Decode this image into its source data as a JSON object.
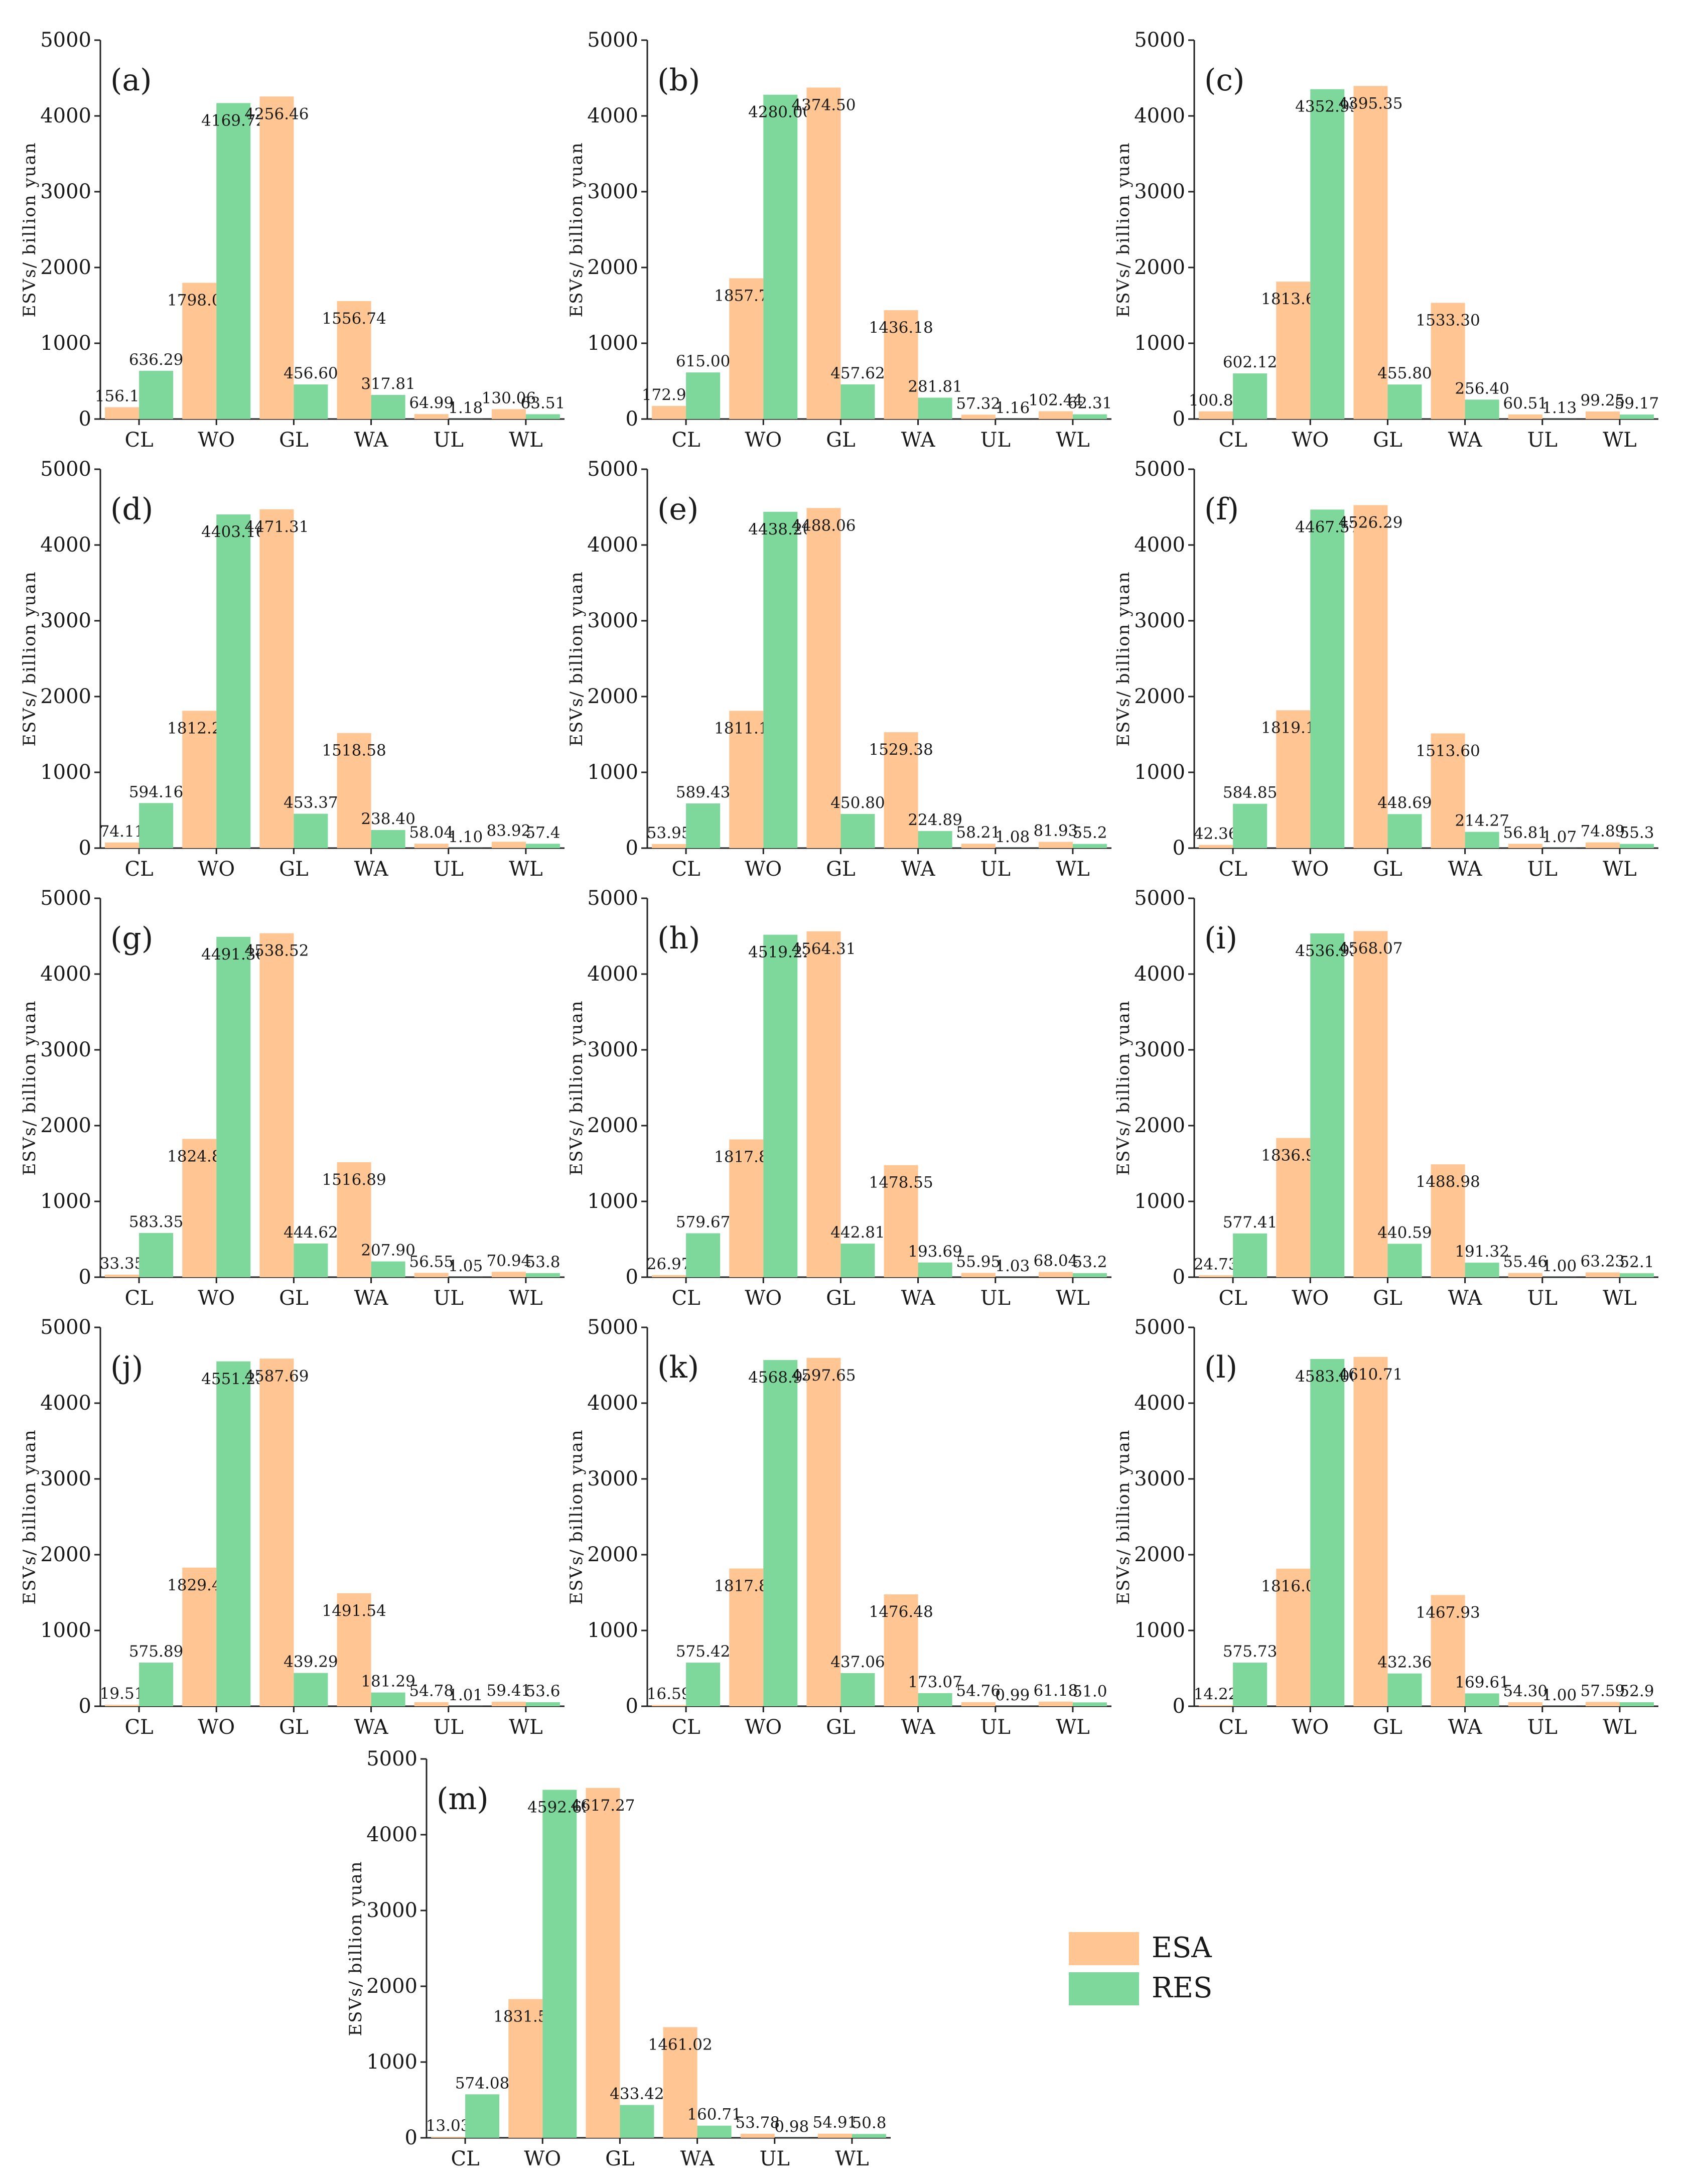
{
  "legend": [
    {
      "name": "ESA",
      "color": "#FFC592"
    },
    {
      "name": "RES",
      "color": "#7ED89C"
    }
  ],
  "chart_data": [
    {
      "type": "bar",
      "panel": "(a)",
      "categories": [
        "CL",
        "WO",
        "GL",
        "WA",
        "UL",
        "WL"
      ],
      "ylabel": "ESVs/ billion yuan",
      "ylim": [
        0,
        5000
      ],
      "yticks": [
        "0",
        "1000",
        "2000",
        "3000",
        "4000",
        "5000"
      ],
      "series": [
        {
          "name": "ESA",
          "values": [
            156.16,
            1798.07,
            4256.46,
            1556.74,
            64.99,
            130.06
          ],
          "labels": [
            "156.16",
            "1798.07",
            "4256.46",
            "1556.74",
            "64.99",
            "130.06"
          ]
        },
        {
          "name": "RES",
          "values": [
            636.29,
            4169.72,
            456.6,
            317.81,
            1.18,
            63.51
          ],
          "labels": [
            "636.29",
            "4169.72",
            "456.60",
            "317.81",
            "1.18",
            "63.51"
          ]
        }
      ]
    },
    {
      "type": "bar",
      "panel": "(b)",
      "categories": [
        "CL",
        "WO",
        "GL",
        "WA",
        "UL",
        "WL"
      ],
      "ylabel": "ESVs/ billion yuan",
      "ylim": [
        0,
        5000
      ],
      "yticks": [
        "0",
        "1000",
        "2000",
        "3000",
        "4000",
        "5000"
      ],
      "series": [
        {
          "name": "ESA",
          "values": [
            172.97,
            1857.77,
            4374.5,
            1436.18,
            57.32,
            102.44
          ],
          "labels": [
            "172.97",
            "1857.77",
            "4374.50",
            "1436.18",
            "57.32",
            "102.44"
          ]
        },
        {
          "name": "RES",
          "values": [
            615.0,
            4280.0,
            457.62,
            281.81,
            1.16,
            62.31
          ],
          "labels": [
            "615.00",
            "4280.00",
            "457.62",
            "281.81",
            "1.16",
            "62.31"
          ]
        }
      ]
    },
    {
      "type": "bar",
      "panel": "(c)",
      "categories": [
        "CL",
        "WO",
        "GL",
        "WA",
        "UL",
        "WL"
      ],
      "ylabel": "ESVs/ billion yuan",
      "ylim": [
        0,
        5000
      ],
      "yticks": [
        "0",
        "1000",
        "2000",
        "3000",
        "4000",
        "5000"
      ],
      "series": [
        {
          "name": "ESA",
          "values": [
            100.87,
            1813.62,
            4395.35,
            1533.3,
            60.51,
            99.25
          ],
          "labels": [
            "100.87",
            "1813.62",
            "4395.35",
            "1533.30",
            "60.51",
            "99.25"
          ]
        },
        {
          "name": "RES",
          "values": [
            602.12,
            4352.99,
            455.8,
            256.4,
            1.13,
            59.17
          ],
          "labels": [
            "602.12",
            "4352.99",
            "455.80",
            "256.40",
            "1.13",
            "59.17"
          ]
        }
      ]
    },
    {
      "type": "bar",
      "panel": "(d)",
      "categories": [
        "CL",
        "WO",
        "GL",
        "WA",
        "UL",
        "WL"
      ],
      "ylabel": "ESVs/ billion yuan",
      "ylim": [
        0,
        5000
      ],
      "yticks": [
        "0",
        "1000",
        "2000",
        "3000",
        "4000",
        "5000"
      ],
      "series": [
        {
          "name": "ESA",
          "values": [
            74.11,
            1812.26,
            4471.31,
            1518.58,
            58.04,
            83.92
          ],
          "labels": [
            "74.11",
            "1812.26",
            "4471.31",
            "1518.58",
            "58.04",
            "83.92"
          ]
        },
        {
          "name": "RES",
          "values": [
            594.16,
            4403.16,
            453.37,
            238.4,
            1.1,
            57.4
          ],
          "labels": [
            "594.16",
            "4403.16",
            "453.37",
            "238.40",
            "1.10",
            "57.4"
          ]
        }
      ]
    },
    {
      "type": "bar",
      "panel": "(e)",
      "categories": [
        "CL",
        "WO",
        "GL",
        "WA",
        "UL",
        "WL"
      ],
      "ylabel": "ESVs/ billion yuan",
      "ylim": [
        0,
        5000
      ],
      "yticks": [
        "0",
        "1000",
        "2000",
        "3000",
        "4000",
        "5000"
      ],
      "series": [
        {
          "name": "ESA",
          "values": [
            53.95,
            1811.19,
            4488.06,
            1529.38,
            58.21,
            81.93
          ],
          "labels": [
            "53.95",
            "1811.19",
            "4488.06",
            "1529.38",
            "58.21",
            "81.93"
          ]
        },
        {
          "name": "RES",
          "values": [
            589.43,
            4438.2,
            450.8,
            224.89,
            1.08,
            55.2
          ],
          "labels": [
            "589.43",
            "4438.20",
            "450.80",
            "224.89",
            "1.08",
            "55.2"
          ]
        }
      ]
    },
    {
      "type": "bar",
      "panel": "(f)",
      "categories": [
        "CL",
        "WO",
        "GL",
        "WA",
        "UL",
        "WL"
      ],
      "ylabel": "ESVs/ billion yuan",
      "ylim": [
        0,
        5000
      ],
      "yticks": [
        "0",
        "1000",
        "2000",
        "3000",
        "4000",
        "5000"
      ],
      "series": [
        {
          "name": "ESA",
          "values": [
            42.36,
            1819.16,
            4526.29,
            1513.6,
            56.81,
            74.89
          ],
          "labels": [
            "42.36",
            "1819.16",
            "4526.29",
            "1513.60",
            "56.81",
            "74.89"
          ]
        },
        {
          "name": "RES",
          "values": [
            584.85,
            4467.57,
            448.69,
            214.27,
            1.07,
            55.3
          ],
          "labels": [
            "584.85",
            "4467.57",
            "448.69",
            "214.27",
            "1.07",
            "55.3"
          ]
        }
      ]
    },
    {
      "type": "bar",
      "panel": "(g)",
      "categories": [
        "CL",
        "WO",
        "GL",
        "WA",
        "UL",
        "WL"
      ],
      "ylabel": "ESVs/ billion yuan",
      "ylim": [
        0,
        5000
      ],
      "yticks": [
        "0",
        "1000",
        "2000",
        "3000",
        "4000",
        "5000"
      ],
      "series": [
        {
          "name": "ESA",
          "values": [
            33.35,
            1824.88,
            4538.52,
            1516.89,
            56.55,
            70.94
          ],
          "labels": [
            "33.35",
            "1824.88",
            "4538.52",
            "1516.89",
            "56.55",
            "70.94"
          ]
        },
        {
          "name": "RES",
          "values": [
            583.35,
            4491.36,
            444.62,
            207.9,
            1.05,
            53.8
          ],
          "labels": [
            "583.35",
            "4491.36",
            "444.62",
            "207.90",
            "1.05",
            "53.8"
          ]
        }
      ]
    },
    {
      "type": "bar",
      "panel": "(h)",
      "categories": [
        "CL",
        "WO",
        "GL",
        "WA",
        "UL",
        "WL"
      ],
      "ylabel": "ESVs/ billion yuan",
      "ylim": [
        0,
        5000
      ],
      "yticks": [
        "0",
        "1000",
        "2000",
        "3000",
        "4000",
        "5000"
      ],
      "series": [
        {
          "name": "ESA",
          "values": [
            26.97,
            1817.85,
            4564.31,
            1478.55,
            55.95,
            68.04
          ],
          "labels": [
            "26.97",
            "1817.85",
            "4564.31",
            "1478.55",
            "55.95",
            "68.04"
          ]
        },
        {
          "name": "RES",
          "values": [
            579.67,
            4519.22,
            442.81,
            193.69,
            1.03,
            53.2
          ],
          "labels": [
            "579.67",
            "4519.22",
            "442.81",
            "193.69",
            "1.03",
            "53.2"
          ]
        }
      ]
    },
    {
      "type": "bar",
      "panel": "(i)",
      "categories": [
        "CL",
        "WO",
        "GL",
        "WA",
        "UL",
        "WL"
      ],
      "ylabel": "ESVs/ billion yuan",
      "ylim": [
        0,
        5000
      ],
      "yticks": [
        "0",
        "1000",
        "2000",
        "3000",
        "4000",
        "5000"
      ],
      "series": [
        {
          "name": "ESA",
          "values": [
            24.73,
            1836.9,
            4568.07,
            1488.98,
            55.46,
            63.23
          ],
          "labels": [
            "24.73",
            "1836.90",
            "4568.07",
            "1488.98",
            "55.46",
            "63.23"
          ]
        },
        {
          "name": "RES",
          "values": [
            577.41,
            4536.93,
            440.59,
            191.32,
            1.0,
            52.1
          ],
          "labels": [
            "577.41",
            "4536.93",
            "440.59",
            "191.32",
            "1.00",
            "52.1"
          ]
        }
      ]
    },
    {
      "type": "bar",
      "panel": "(j)",
      "categories": [
        "CL",
        "WO",
        "GL",
        "WA",
        "UL",
        "WL"
      ],
      "ylabel": "ESVs/ billion yuan",
      "ylim": [
        0,
        5000
      ],
      "yticks": [
        "0",
        "1000",
        "2000",
        "3000",
        "4000",
        "5000"
      ],
      "series": [
        {
          "name": "ESA",
          "values": [
            19.51,
            1829.46,
            4587.69,
            1491.54,
            54.78,
            59.41
          ],
          "labels": [
            "19.51",
            "1829.46",
            "4587.69",
            "1491.54",
            "54.78",
            "59.41"
          ]
        },
        {
          "name": "RES",
          "values": [
            575.89,
            4551.23,
            439.29,
            181.29,
            1.01,
            53.6
          ],
          "labels": [
            "575.89",
            "4551.23",
            "439.29",
            "181.29",
            "1.01",
            "53.6"
          ]
        }
      ]
    },
    {
      "type": "bar",
      "panel": "(k)",
      "categories": [
        "CL",
        "WO",
        "GL",
        "WA",
        "UL",
        "WL"
      ],
      "ylabel": "ESVs/ billion yuan",
      "ylim": [
        0,
        5000
      ],
      "yticks": [
        "0",
        "1000",
        "2000",
        "3000",
        "4000",
        "5000"
      ],
      "series": [
        {
          "name": "ESA",
          "values": [
            16.59,
            1817.85,
            4597.65,
            1476.48,
            54.76,
            61.18
          ],
          "labels": [
            "16.59",
            "1817.85",
            "4597.65",
            "1476.48",
            "54.76",
            "61.18"
          ]
        },
        {
          "name": "RES",
          "values": [
            575.42,
            4568.94,
            437.06,
            173.07,
            0.99,
            51.0
          ],
          "labels": [
            "575.42",
            "4568.94",
            "437.06",
            "173.07",
            "0.99",
            "51.0"
          ]
        }
      ]
    },
    {
      "type": "bar",
      "panel": "(l)",
      "categories": [
        "CL",
        "WO",
        "GL",
        "WA",
        "UL",
        "WL"
      ],
      "ylabel": "ESVs/ billion yuan",
      "ylim": [
        0,
        5000
      ],
      "yticks": [
        "0",
        "1000",
        "2000",
        "3000",
        "4000",
        "5000"
      ],
      "series": [
        {
          "name": "ESA",
          "values": [
            14.22,
            1816.03,
            4610.71,
            1467.93,
            54.3,
            57.59
          ],
          "labels": [
            "14.22",
            "1816.03",
            "4610.71",
            "1467.93",
            "54.30",
            "57.59"
          ]
        },
        {
          "name": "RES",
          "values": [
            575.73,
            4583.0,
            432.36,
            169.61,
            1.0,
            52.9
          ],
          "labels": [
            "575.73",
            "4583.00",
            "432.36",
            "169.61",
            "1.00",
            "52.9"
          ]
        }
      ]
    },
    {
      "type": "bar",
      "panel": "(m)",
      "categories": [
        "CL",
        "WO",
        "GL",
        "WA",
        "UL",
        "WL"
      ],
      "ylabel": "ESVs/ billion yuan",
      "ylim": [
        0,
        5000
      ],
      "yticks": [
        "0",
        "1000",
        "2000",
        "3000",
        "4000",
        "5000"
      ],
      "series": [
        {
          "name": "ESA",
          "values": [
            13.03,
            1831.53,
            4617.27,
            1461.02,
            53.78,
            54.91
          ],
          "labels": [
            "13.03",
            "1831.53",
            "4617.27",
            "1461.02",
            "53.78",
            "54.91"
          ]
        },
        {
          "name": "RES",
          "values": [
            574.08,
            4592.69,
            433.42,
            160.71,
            0.98,
            50.8
          ],
          "labels": [
            "574.08",
            "4592.69",
            "433.42",
            "160.71",
            "0.98",
            "50.8"
          ]
        }
      ]
    }
  ]
}
